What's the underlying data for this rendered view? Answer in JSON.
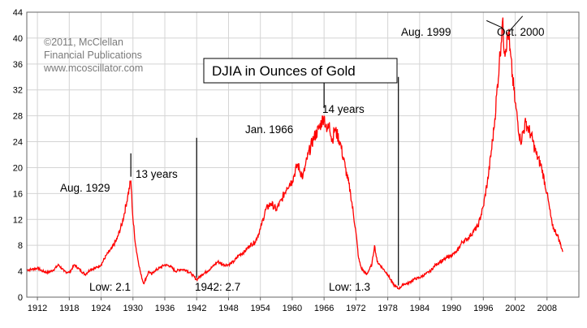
{
  "chart_data": {
    "type": "line",
    "title": "DJIA in Ounces of Gold",
    "credit": [
      "©2011, McClellan",
      "Financial Publications",
      "www.mcoscillator.com"
    ],
    "xlim": [
      1910,
      2014
    ],
    "ylim": [
      0,
      44
    ],
    "x_ticks": [
      1912,
      1918,
      1924,
      1930,
      1936,
      1942,
      1948,
      1954,
      1960,
      1966,
      1972,
      1978,
      1984,
      1990,
      1996,
      2002,
      2008
    ],
    "y_ticks": [
      0,
      4,
      8,
      12,
      16,
      20,
      24,
      28,
      32,
      36,
      40,
      44
    ],
    "grid": true,
    "series": [
      {
        "color": "#ff0000",
        "x": [
          1910.0,
          1911.0,
          1912.0,
          1913.0,
          1914.0,
          1915.0,
          1916.0,
          1917.0,
          1918.0,
          1919.0,
          1920.0,
          1921.0,
          1922.0,
          1923.0,
          1924.0,
          1925.0,
          1926.0,
          1927.0,
          1928.0,
          1929.0,
          1929.6,
          1930.0,
          1930.5,
          1931.0,
          1931.5,
          1932.0,
          1932.5,
          1933.0,
          1933.5,
          1934.0,
          1935.0,
          1936.0,
          1937.0,
          1938.0,
          1939.0,
          1940.0,
          1941.0,
          1942.0,
          1943.0,
          1944.0,
          1945.0,
          1946.0,
          1947.0,
          1948.0,
          1949.0,
          1950.0,
          1951.0,
          1952.0,
          1953.0,
          1954.0,
          1955.0,
          1956.0,
          1957.0,
          1958.0,
          1959.0,
          1960.0,
          1961.0,
          1962.0,
          1963.0,
          1964.0,
          1965.0,
          1966.0,
          1966.5,
          1967.0,
          1967.5,
          1968.0,
          1969.0,
          1970.0,
          1971.0,
          1972.0,
          1972.5,
          1973.0,
          1974.0,
          1975.0,
          1975.5,
          1976.0,
          1977.0,
          1978.0,
          1979.0,
          1980.0,
          1981.0,
          1982.0,
          1983.0,
          1984.0,
          1985.0,
          1986.0,
          1987.0,
          1988.0,
          1989.0,
          1990.0,
          1991.0,
          1992.0,
          1993.0,
          1994.0,
          1995.0,
          1996.0,
          1997.0,
          1998.0,
          1999.0,
          1999.6,
          2000.0,
          2000.8,
          2001.0,
          2002.0,
          2003.0,
          2004.0,
          2005.0,
          2006.0,
          2007.0,
          2008.0,
          2009.0,
          2010.0,
          2011.0
        ],
        "y": [
          4.2,
          4.3,
          4.5,
          4.0,
          3.8,
          4.2,
          5.0,
          4.0,
          3.8,
          5.0,
          4.2,
          3.5,
          4.3,
          4.5,
          5.0,
          6.5,
          7.5,
          9.0,
          11.5,
          15.5,
          18.0,
          12.0,
          8.0,
          5.5,
          3.5,
          2.1,
          3.0,
          4.0,
          3.5,
          4.0,
          4.5,
          5.0,
          4.8,
          4.0,
          4.3,
          4.2,
          3.6,
          2.7,
          3.5,
          4.0,
          4.7,
          5.5,
          5.0,
          5.0,
          5.5,
          6.5,
          7.0,
          8.0,
          8.5,
          10.5,
          13.5,
          14.5,
          13.5,
          15.0,
          17.0,
          18.0,
          20.5,
          18.5,
          22.0,
          24.5,
          26.0,
          28.0,
          25.5,
          27.0,
          24.0,
          26.0,
          24.0,
          20.0,
          16.0,
          10.0,
          6.0,
          4.5,
          3.5,
          5.0,
          8.0,
          5.5,
          4.5,
          3.5,
          2.0,
          1.3,
          2.0,
          2.2,
          2.8,
          3.0,
          3.5,
          4.0,
          5.0,
          5.5,
          6.0,
          6.5,
          7.0,
          8.5,
          9.0,
          10.0,
          11.0,
          14.0,
          19.0,
          26.0,
          36.0,
          42.5,
          38.0,
          41.0,
          38.0,
          30.0,
          24.0,
          27.0,
          25.0,
          22.0,
          20.0,
          16.0,
          11.0,
          9.5,
          7.0
        ]
      }
    ],
    "annotations": {
      "low_1932": "Low: 2.1",
      "aug_1929": "Aug. 1929",
      "years_13": "13 years",
      "low_1942": "1942: 2.7",
      "jan_1966": "Jan. 1966",
      "years_14": "14 years",
      "low_1980": "Low: 1.3",
      "aug_1999": "Aug. 1999",
      "oct_2000": "Oct. 2000"
    }
  }
}
